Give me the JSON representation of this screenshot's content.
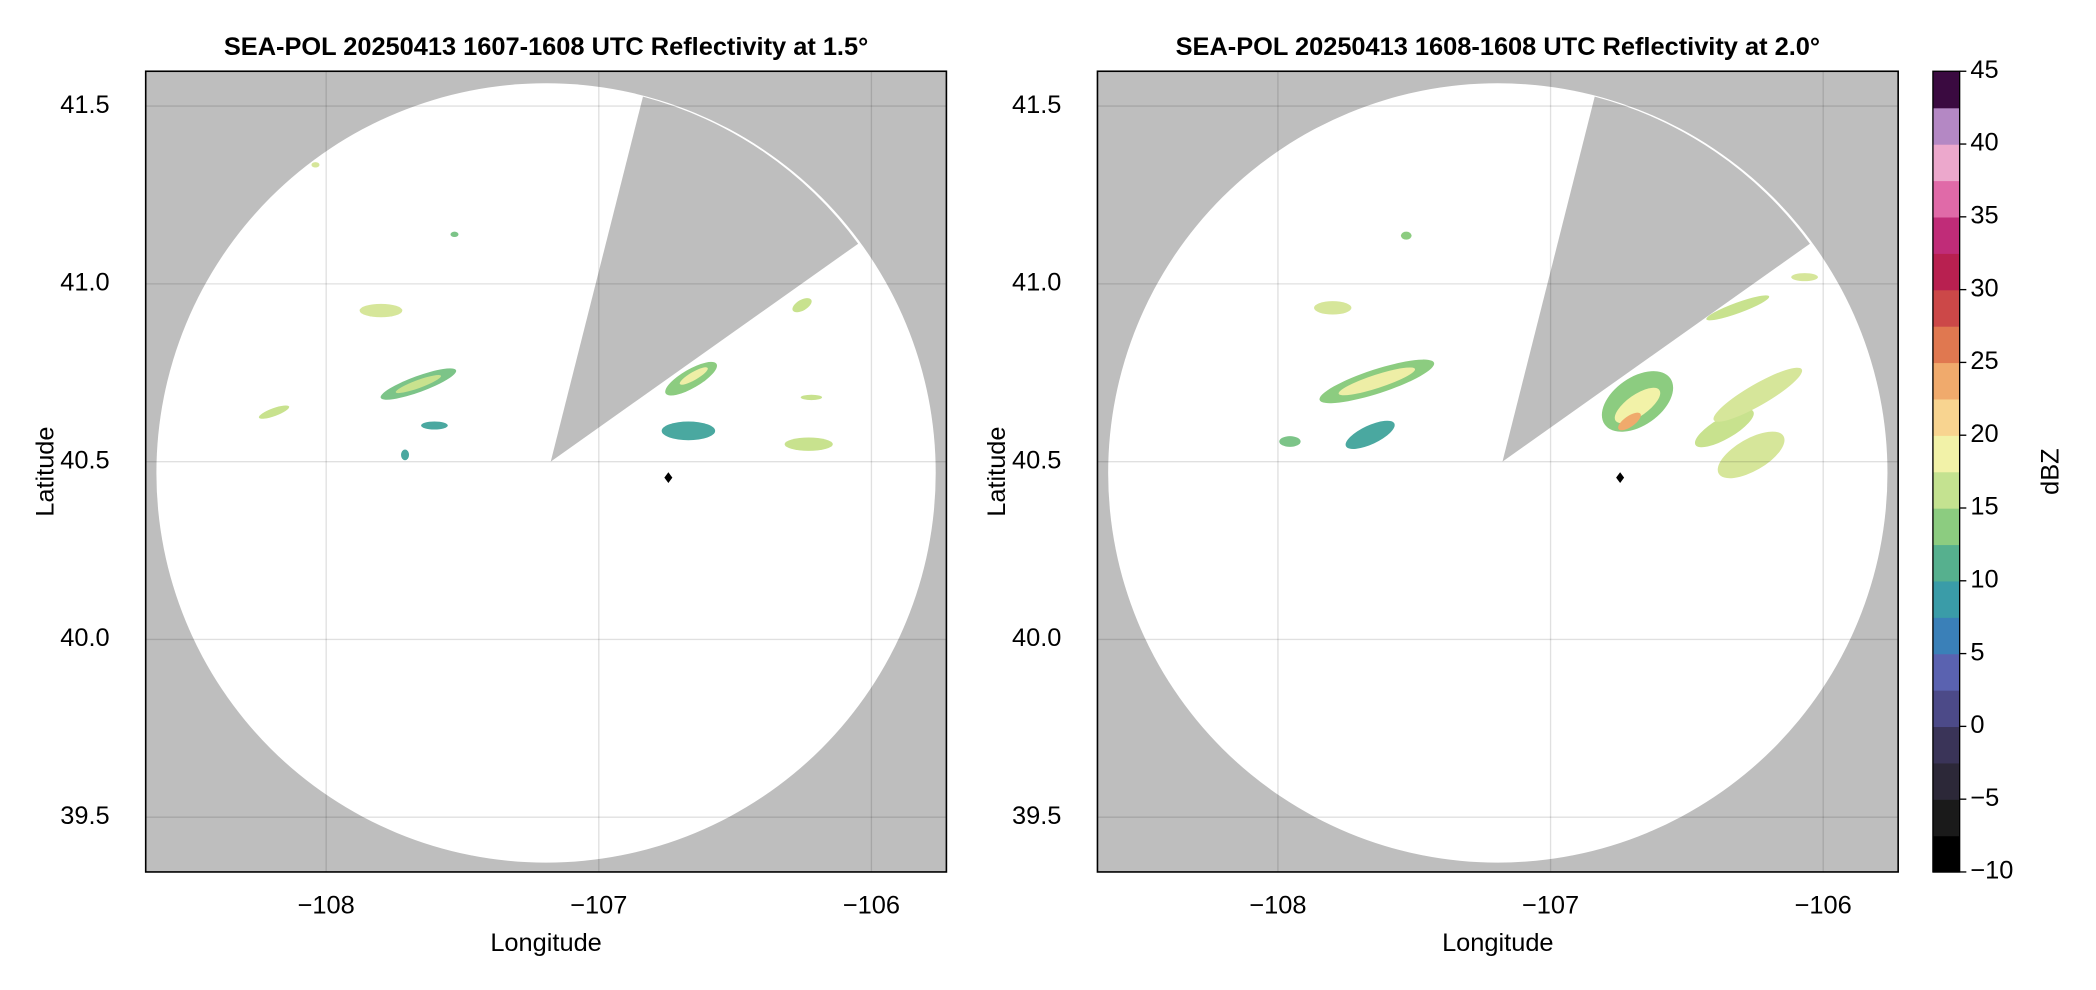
{
  "chart_data": [
    {
      "type": "radar-ppi",
      "title": "SEA-POL 20250413 1607-1608 UTC Reflectivity at 1.5°",
      "x_label": "Longitude",
      "y_label": "Latitude",
      "xlim": [
        -108.662,
        -105.725
      ],
      "ylim": [
        39.346,
        41.598
      ],
      "xticks": [
        {
          "value": -108,
          "label": "−108"
        },
        {
          "value": -107,
          "label": "−107"
        },
        {
          "value": -106,
          "label": "−106"
        }
      ],
      "yticks": [
        39.5,
        {
          "value": 40,
          "label": "40.0"
        },
        40.5,
        {
          "value": 41,
          "label": "41.0"
        },
        41.5
      ],
      "grid": true
    },
    {
      "type": "radar-ppi",
      "title": "SEA-POL 20250413 1608-1608 UTC Reflectivity at 2.0°",
      "x_label": "Longitude",
      "y_label": "Latitude",
      "xlim": [
        -108.662,
        -105.725
      ],
      "ylim": [
        39.346,
        41.598
      ],
      "xticks": [
        {
          "value": -108,
          "label": "−108"
        },
        {
          "value": -107,
          "label": "−107"
        },
        {
          "value": -106,
          "label": "−106"
        }
      ],
      "yticks": [
        39.5,
        {
          "value": 40,
          "label": "40.0"
        },
        40.5,
        {
          "value": 41,
          "label": "41.0"
        },
        41.5
      ],
      "grid": true
    },
    {
      "type": "colorbar",
      "label": "dBZ",
      "ylim": [
        -10,
        45
      ],
      "yticks": [
        {
          "value": -10,
          "label": "−10"
        },
        {
          "value": -5,
          "label": "−5"
        },
        0,
        5,
        10,
        15,
        20,
        25,
        30,
        35,
        40,
        45
      ],
      "colors": [
        "#000000",
        "#1a1a1a",
        "#2c2838",
        "#3a3458",
        "#4c4a88",
        "#5a62b0",
        "#3a80b8",
        "#3a9ca8",
        "#56b08e",
        "#8ccc80",
        "#c4e290",
        "#f2f2a8",
        "#f8d490",
        "#f0aa6c",
        "#e07850",
        "#cc4848",
        "#b82050",
        "#c02c78",
        "#e06aa8",
        "#eca8cc",
        "#b488c4",
        "#3a0a40"
      ]
    }
  ]
}
